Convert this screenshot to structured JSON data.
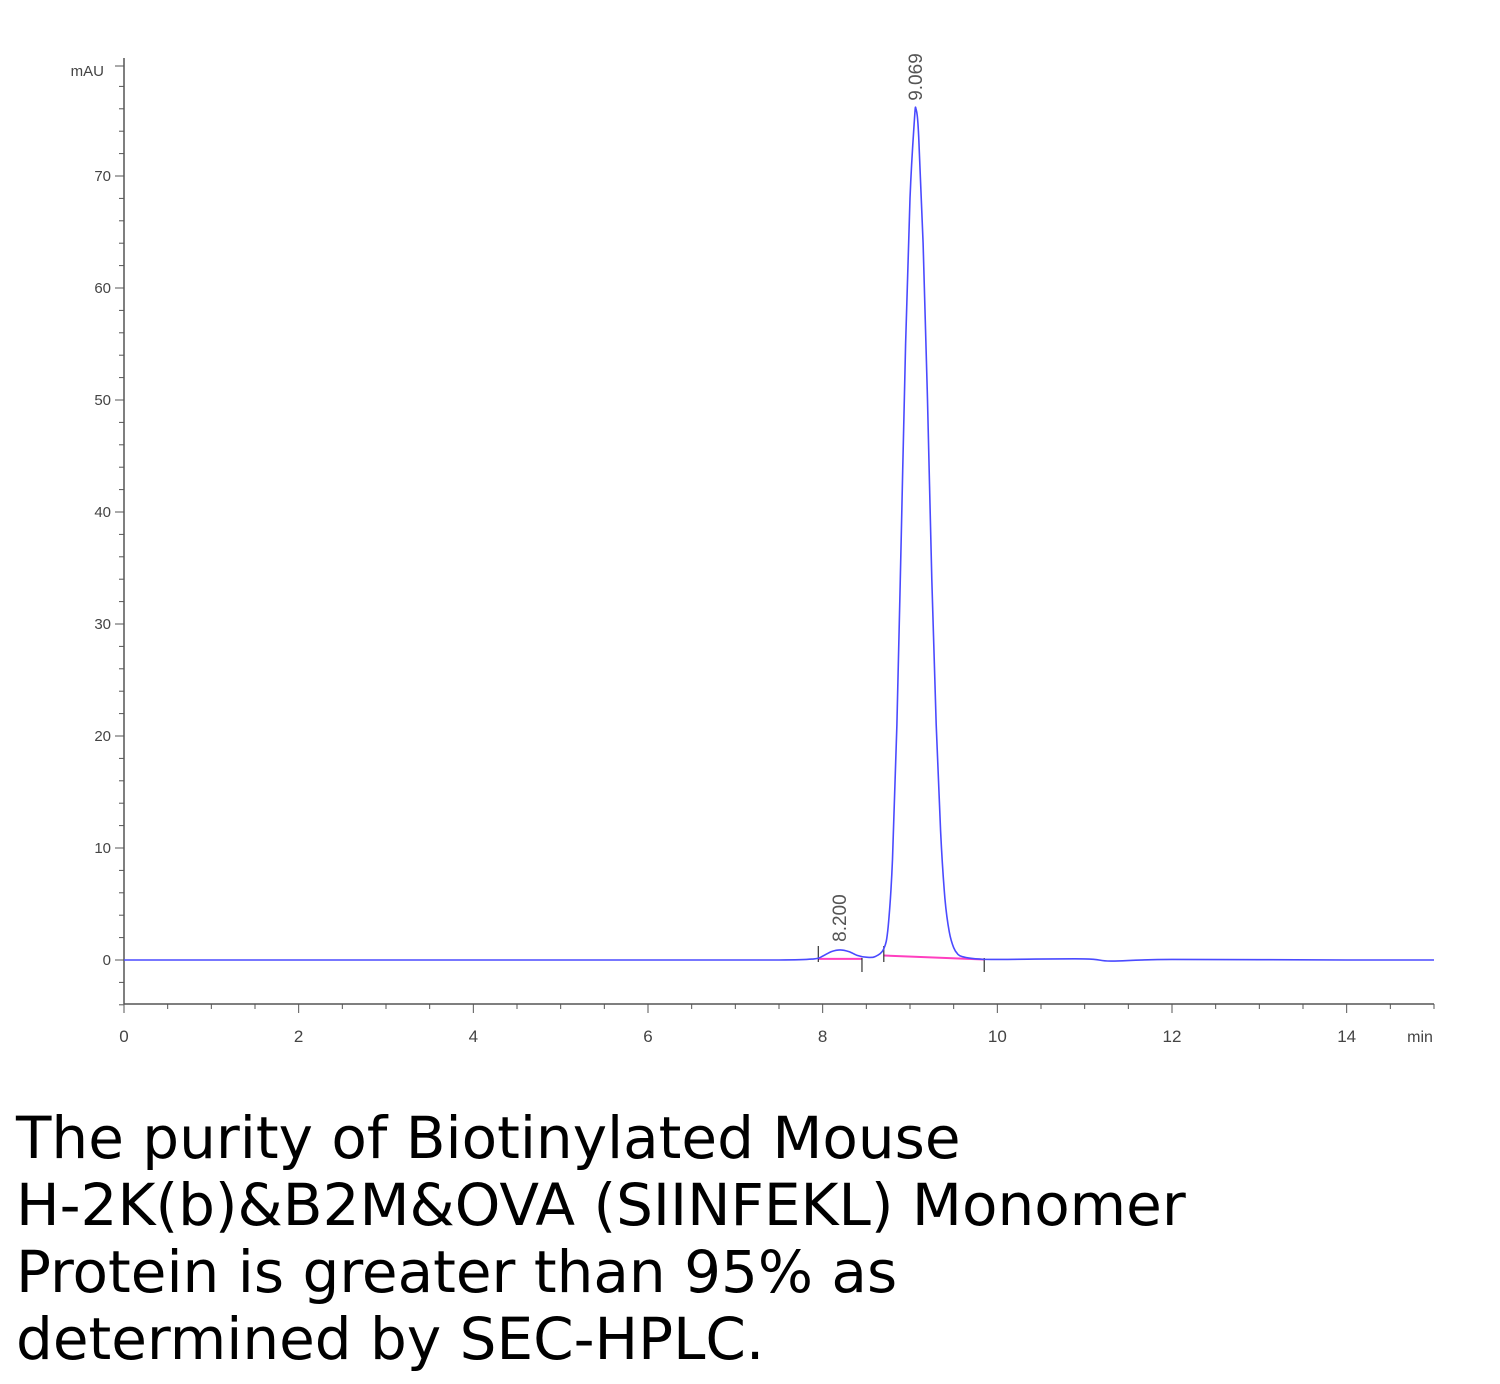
{
  "chart_data": {
    "type": "line",
    "title": "",
    "xlabel": "min",
    "ylabel": "mAU",
    "xlim": [
      0,
      15
    ],
    "ylim": [
      -4,
      80
    ],
    "x_ticks": [
      0,
      2,
      4,
      6,
      8,
      10,
      12,
      14
    ],
    "y_ticks": [
      0,
      10,
      20,
      30,
      40,
      50,
      60,
      70
    ],
    "grid": false,
    "legend": "none",
    "series": [
      {
        "color": "#4a4aff",
        "x": [
          0,
          2,
          4,
          6,
          7.5,
          7.9,
          8.0,
          8.1,
          8.2,
          8.3,
          8.4,
          8.5,
          8.6,
          8.7,
          8.75,
          8.8,
          8.85,
          8.9,
          8.95,
          9.0,
          9.05,
          9.069,
          9.1,
          9.15,
          9.2,
          9.25,
          9.3,
          9.35,
          9.4,
          9.45,
          9.5,
          9.55,
          9.6,
          9.7,
          9.8,
          10.0,
          11.0,
          11.3,
          12.0,
          14.0,
          15.0
        ],
        "y": [
          0,
          0,
          0,
          0,
          0,
          0.1,
          0.35,
          0.75,
          0.9,
          0.75,
          0.4,
          0.25,
          0.3,
          1.0,
          3.0,
          9.0,
          21.0,
          38.0,
          55.0,
          68.0,
          75.0,
          76.0,
          73.5,
          64.0,
          50.0,
          34.0,
          21.0,
          11.5,
          5.5,
          2.5,
          1.1,
          0.5,
          0.3,
          0.15,
          0.08,
          0.05,
          0.1,
          -0.1,
          0.05,
          0,
          0
        ]
      }
    ],
    "baselines": [
      {
        "color": "#ff3fbf",
        "x": [
          7.95,
          8.45
        ],
        "y": [
          0.1,
          0.1
        ]
      },
      {
        "color": "#ff3fbf",
        "x": [
          8.7,
          9.85
        ],
        "y": [
          0.4,
          0.05
        ]
      }
    ],
    "integration_markers_x": [
      7.95,
      8.45,
      8.7,
      9.85
    ],
    "peaks": [
      {
        "time": 8.2,
        "label": "8.200",
        "height": 0.9
      },
      {
        "time": 9.069,
        "label": "9.069",
        "height": 76.0
      }
    ]
  },
  "caption": {
    "lines": [
      "The purity of Biotinylated Mouse",
      "H-2K(b)&B2M&OVA (SIINFEKL) Monomer",
      "Protein is greater than 95% as",
      "determined by SEC-HPLC."
    ]
  }
}
